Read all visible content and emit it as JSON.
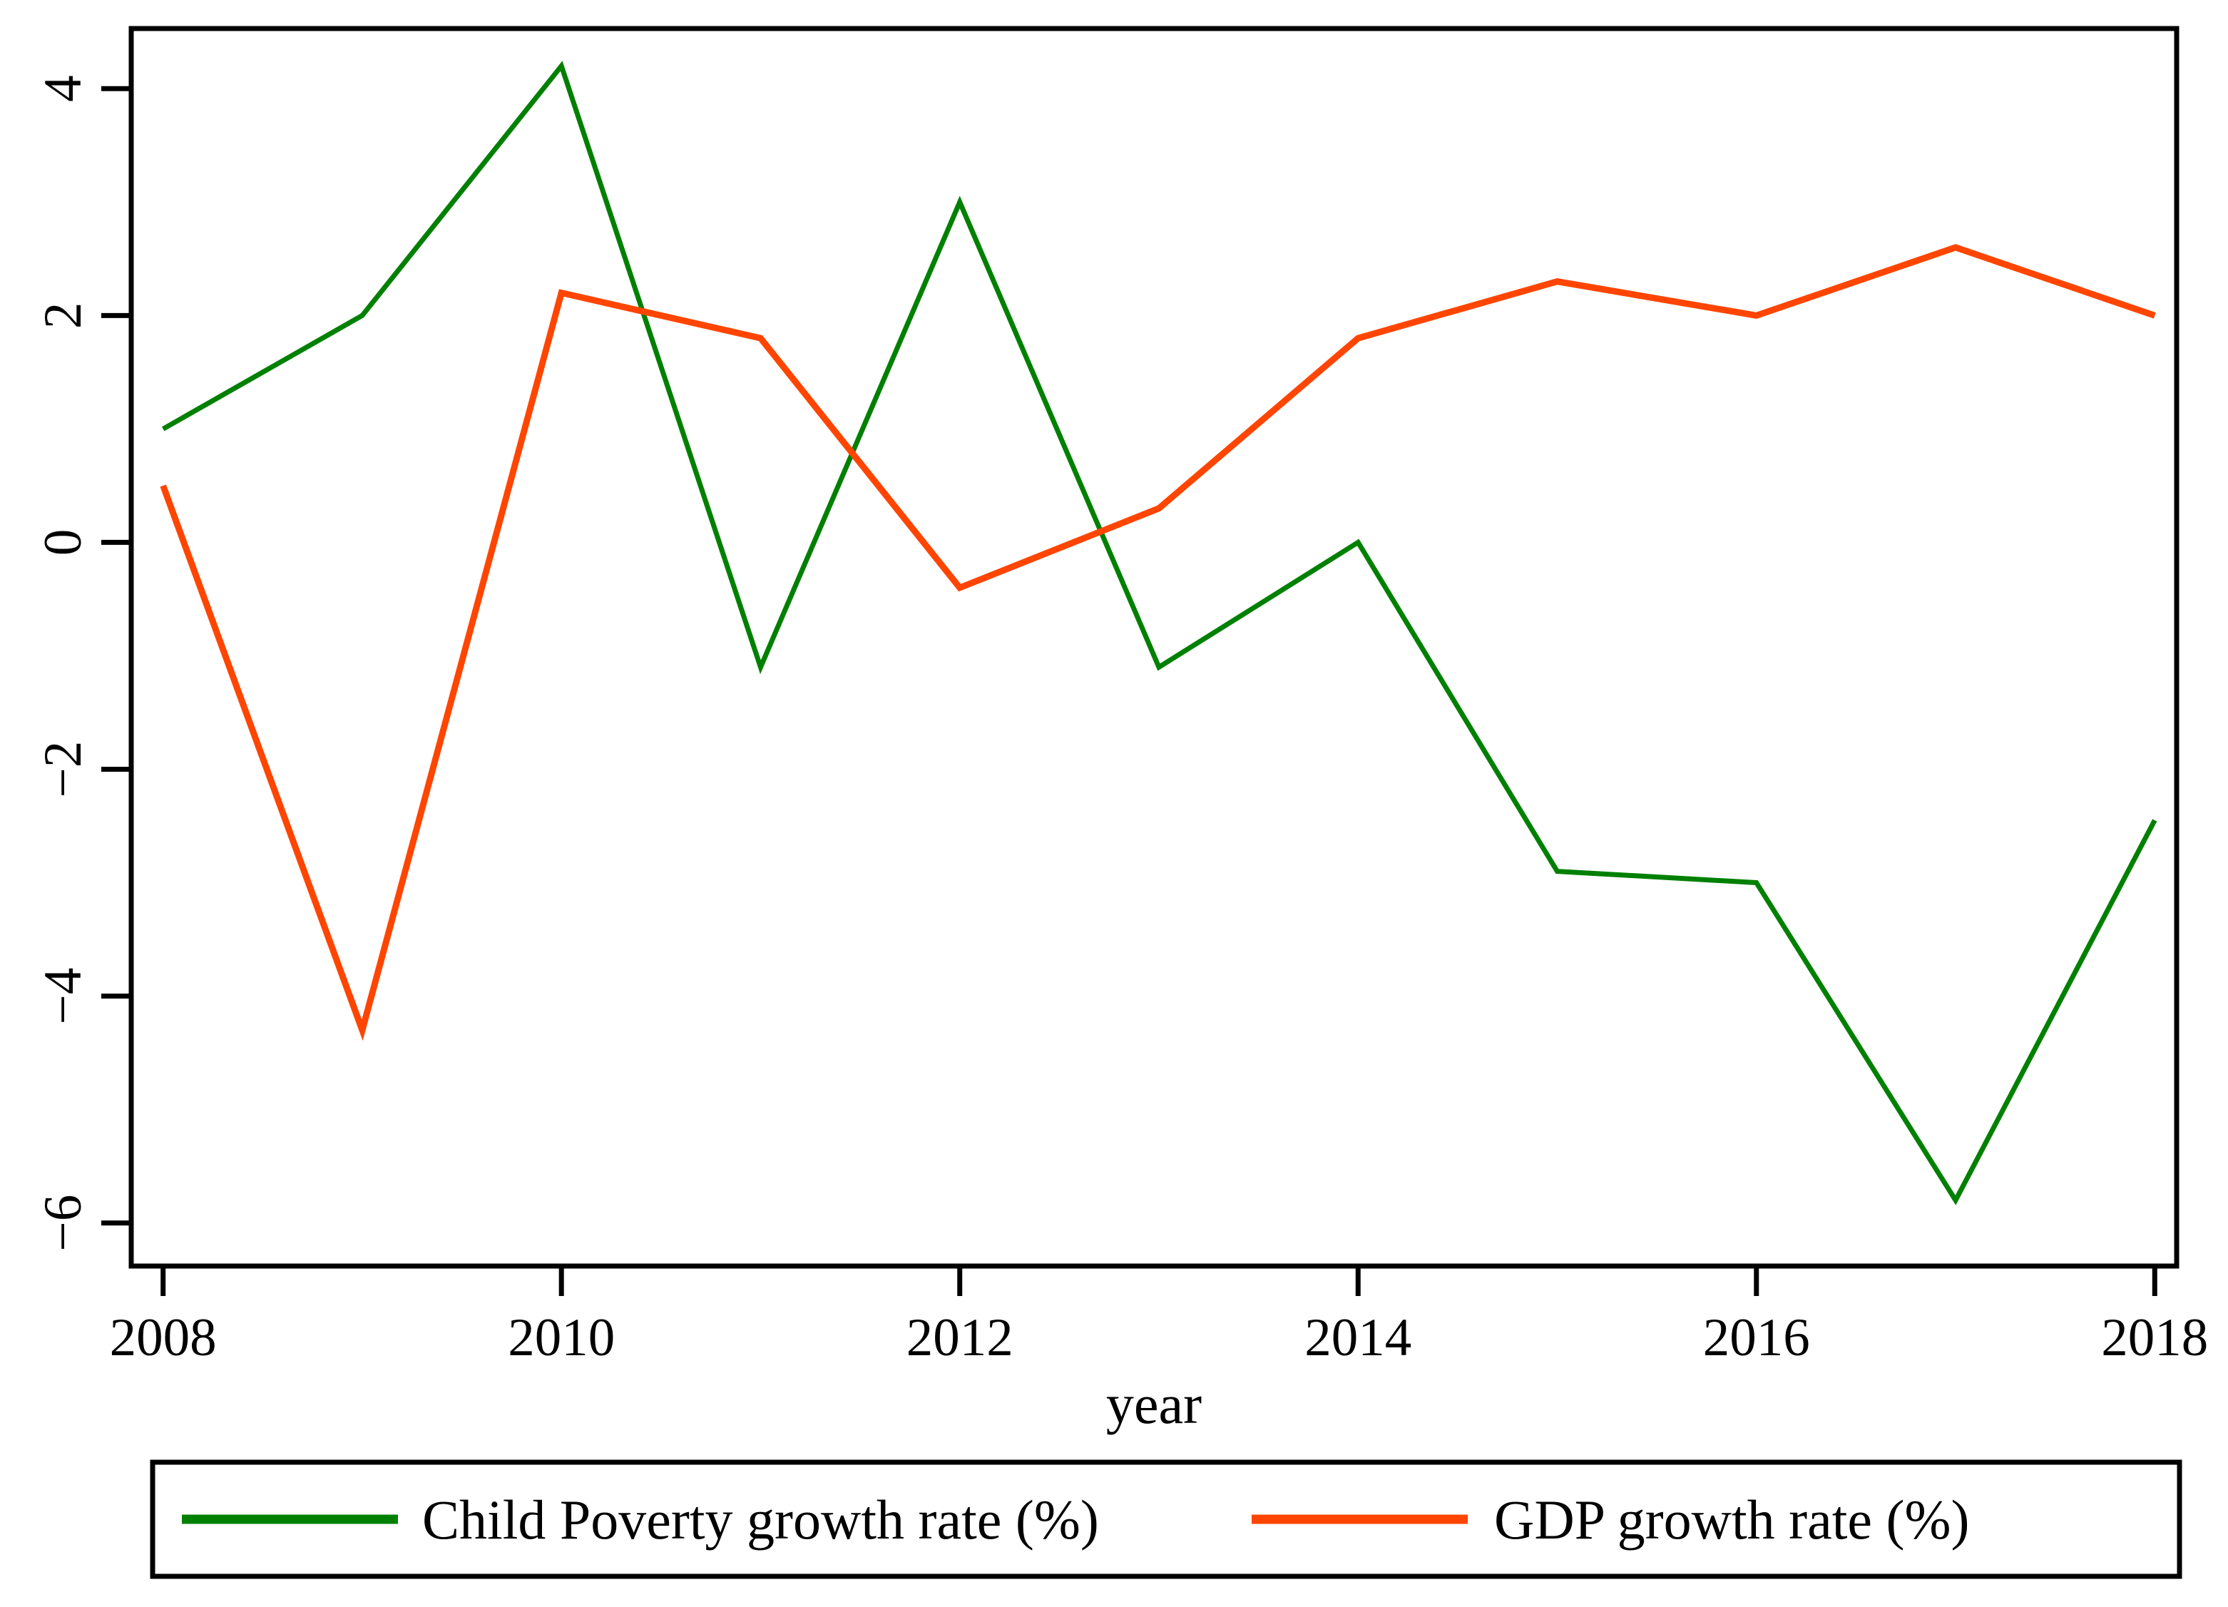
{
  "figure": {
    "background": "#ffffff",
    "border_color": "#000000"
  },
  "chart_data": {
    "type": "line",
    "title": "",
    "xlabel": "year",
    "ylabel": "",
    "x": [
      2008,
      2009,
      2010,
      2011,
      2012,
      2013,
      2014,
      2015,
      2016,
      2017,
      2018
    ],
    "series": [
      {
        "name": "Child Poverty growth rate (%)",
        "color": "#008000",
        "stroke_width": 7,
        "values": [
          1.0,
          2.0,
          4.2,
          -1.1,
          3.0,
          -1.1,
          0.0,
          -2.9,
          -3.0,
          -5.8,
          -2.45
        ]
      },
      {
        "name": "GDP growth rate (%)",
        "color": "#ff4500",
        "stroke_width": 9,
        "values": [
          0.5,
          -4.3,
          2.2,
          1.8,
          -0.4,
          0.3,
          1.8,
          2.3,
          2.0,
          2.6,
          2.0
        ]
      }
    ],
    "xlim": [
      2007.84,
      2018.11
    ],
    "ylim": [
      -6.38,
      4.53
    ],
    "yticks": [
      {
        "v": 4,
        "label": "4"
      },
      {
        "v": 2,
        "label": "2"
      },
      {
        "v": 0,
        "label": "0"
      },
      {
        "v": -2,
        "label": "−2"
      },
      {
        "v": -4,
        "label": "−4"
      },
      {
        "v": -6,
        "label": "−6"
      }
    ],
    "xticks": [
      {
        "v": 2008,
        "label": "2008"
      },
      {
        "v": 2010,
        "label": "2010"
      },
      {
        "v": 2012,
        "label": "2012"
      },
      {
        "v": 2014,
        "label": "2014"
      },
      {
        "v": 2016,
        "label": "2016"
      },
      {
        "v": 2018,
        "label": "2018"
      }
    ],
    "grid": false,
    "legend_position": "bottom"
  }
}
